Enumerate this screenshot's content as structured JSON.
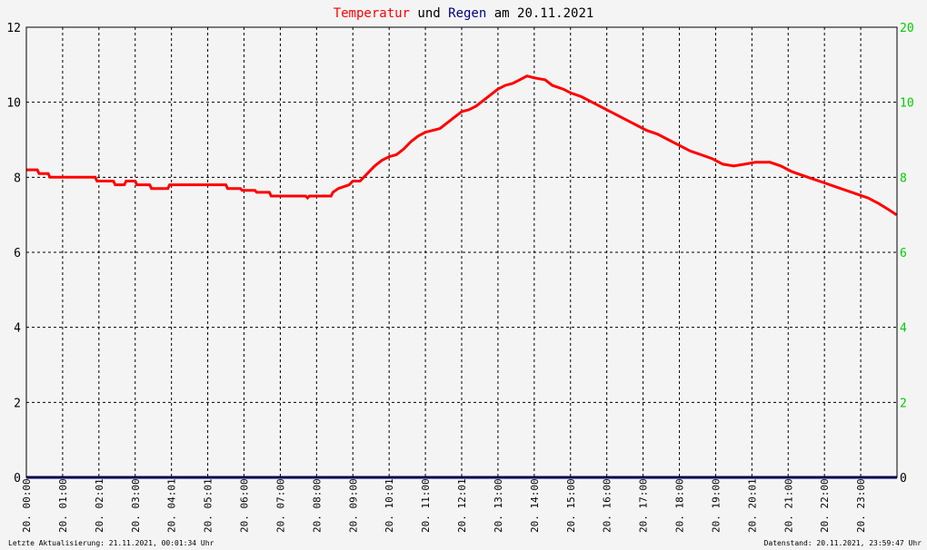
{
  "title": {
    "part1": "Temperatur",
    "part2": " und ",
    "part3": "Regen",
    "part4": " am 20.11.2021"
  },
  "colors": {
    "temperature": "#ff0000",
    "rain": "#000080",
    "right_axis": "#00cc00",
    "grid": "#000000"
  },
  "footer": {
    "left": "Letzte Aktualisierung: 21.11.2021, 00:01:34 Uhr",
    "right": "Datenstand: 20.11.2021, 23:59:47 Uhr"
  },
  "chart_data": {
    "type": "line",
    "title": "Temperatur und Regen am 20.11.2021",
    "grid": true,
    "y_left": {
      "lim": [
        0,
        12
      ],
      "ticks": [
        "0",
        "2",
        "4",
        "6",
        "8",
        "10",
        "12"
      ]
    },
    "y_right": {
      "lim": [
        0,
        20
      ],
      "ticks": [
        "0",
        "2",
        "4",
        "6",
        "8",
        "10",
        "20"
      ]
    },
    "x_ticks": [
      "20. 00:00",
      "20. 01:00",
      "20. 02:01",
      "20. 03:00",
      "20. 04:01",
      "20. 05:01",
      "20. 06:00",
      "20. 07:00",
      "20. 08:00",
      "20. 09:00",
      "20. 10:01",
      "20. 11:00",
      "20. 12:01",
      "20. 13:00",
      "20. 14:00",
      "20. 15:00",
      "20. 16:00",
      "20. 17:00",
      "20. 18:00",
      "20. 19:00",
      "20. 20:01",
      "20. 21:00",
      "20. 22:00",
      "20. 23:00"
    ],
    "x_range_hours": [
      0,
      24
    ],
    "series": [
      {
        "name": "Temperatur",
        "axis": "left",
        "points": [
          [
            0,
            8.2
          ],
          [
            0.3,
            8.2
          ],
          [
            0.35,
            8.1
          ],
          [
            0.6,
            8.1
          ],
          [
            0.65,
            8.0
          ],
          [
            1.9,
            8.0
          ],
          [
            1.95,
            7.9
          ],
          [
            2.4,
            7.9
          ],
          [
            2.45,
            7.8
          ],
          [
            2.7,
            7.8
          ],
          [
            2.75,
            7.9
          ],
          [
            3.0,
            7.9
          ],
          [
            3.05,
            7.8
          ],
          [
            3.4,
            7.8
          ],
          [
            3.45,
            7.7
          ],
          [
            3.9,
            7.7
          ],
          [
            3.95,
            7.8
          ],
          [
            5.5,
            7.8
          ],
          [
            5.55,
            7.7
          ],
          [
            5.9,
            7.7
          ],
          [
            5.95,
            7.65
          ],
          [
            6.3,
            7.65
          ],
          [
            6.35,
            7.6
          ],
          [
            6.7,
            7.6
          ],
          [
            6.75,
            7.5
          ],
          [
            7.7,
            7.5
          ],
          [
            7.75,
            7.45
          ],
          [
            7.8,
            7.5
          ],
          [
            8.4,
            7.5
          ],
          [
            8.45,
            7.6
          ],
          [
            8.6,
            7.7
          ],
          [
            8.9,
            7.8
          ],
          [
            9.0,
            7.9
          ],
          [
            9.2,
            7.9
          ],
          [
            9.4,
            8.1
          ],
          [
            9.6,
            8.3
          ],
          [
            9.8,
            8.45
          ],
          [
            10.0,
            8.55
          ],
          [
            10.2,
            8.6
          ],
          [
            10.4,
            8.75
          ],
          [
            10.6,
            8.95
          ],
          [
            10.8,
            9.1
          ],
          [
            11.0,
            9.2
          ],
          [
            11.2,
            9.25
          ],
          [
            11.4,
            9.3
          ],
          [
            11.6,
            9.45
          ],
          [
            11.8,
            9.6
          ],
          [
            12.0,
            9.75
          ],
          [
            12.2,
            9.8
          ],
          [
            12.4,
            9.9
          ],
          [
            12.6,
            10.05
          ],
          [
            12.8,
            10.2
          ],
          [
            13.0,
            10.35
          ],
          [
            13.2,
            10.45
          ],
          [
            13.4,
            10.5
          ],
          [
            13.6,
            10.6
          ],
          [
            13.8,
            10.7
          ],
          [
            14.0,
            10.65
          ],
          [
            14.3,
            10.6
          ],
          [
            14.5,
            10.45
          ],
          [
            14.8,
            10.35
          ],
          [
            15.0,
            10.25
          ],
          [
            15.3,
            10.15
          ],
          [
            15.6,
            10.0
          ],
          [
            15.9,
            9.85
          ],
          [
            16.2,
            9.7
          ],
          [
            16.5,
            9.55
          ],
          [
            16.8,
            9.4
          ],
          [
            17.1,
            9.25
          ],
          [
            17.4,
            9.15
          ],
          [
            17.7,
            9.0
          ],
          [
            18.0,
            8.85
          ],
          [
            18.3,
            8.7
          ],
          [
            18.6,
            8.6
          ],
          [
            18.9,
            8.5
          ],
          [
            19.2,
            8.35
          ],
          [
            19.5,
            8.3
          ],
          [
            19.8,
            8.35
          ],
          [
            20.1,
            8.4
          ],
          [
            20.5,
            8.4
          ],
          [
            20.8,
            8.3
          ],
          [
            21.1,
            8.15
          ],
          [
            21.4,
            8.05
          ],
          [
            21.7,
            7.95
          ],
          [
            22.0,
            7.85
          ],
          [
            22.3,
            7.75
          ],
          [
            22.6,
            7.65
          ],
          [
            22.9,
            7.55
          ],
          [
            23.2,
            7.45
          ],
          [
            23.5,
            7.3
          ],
          [
            23.75,
            7.15
          ],
          [
            23.99,
            7.0
          ]
        ]
      },
      {
        "name": "Regen",
        "axis": "right",
        "points": [
          [
            0,
            0
          ],
          [
            24,
            0
          ]
        ]
      }
    ]
  }
}
